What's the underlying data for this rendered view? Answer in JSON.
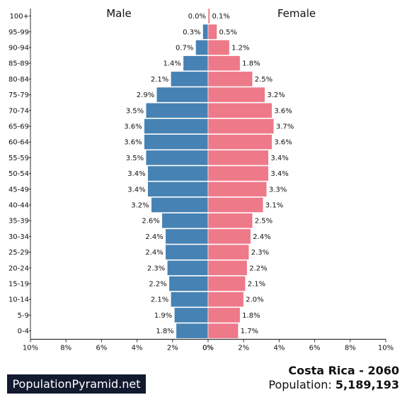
{
  "chart_data": {
    "type": "bar",
    "orientation": "horizontal",
    "categories": [
      "100+",
      "95-99",
      "90-94",
      "85-89",
      "80-84",
      "75-79",
      "70-74",
      "65-69",
      "60-64",
      "55-59",
      "50-54",
      "45-49",
      "40-44",
      "35-39",
      "30-34",
      "25-29",
      "20-24",
      "15-19",
      "10-14",
      "5-9",
      "0-4"
    ],
    "series": [
      {
        "name": "Male",
        "values": [
          0.0,
          0.3,
          0.7,
          1.4,
          2.1,
          2.9,
          3.5,
          3.6,
          3.6,
          3.5,
          3.4,
          3.4,
          3.2,
          2.6,
          2.4,
          2.4,
          2.3,
          2.2,
          2.1,
          1.9,
          1.8
        ],
        "labels": [
          "0.0%",
          "0.3%",
          "0.7%",
          "1.4%",
          "2.1%",
          "2.9%",
          "3.5%",
          "3.6%",
          "3.6%",
          "3.5%",
          "3.4%",
          "3.4%",
          "3.2%",
          "2.6%",
          "2.4%",
          "2.4%",
          "2.3%",
          "2.2%",
          "2.1%",
          "1.9%",
          "1.8%"
        ],
        "color": "#4682b4"
      },
      {
        "name": "Female",
        "values": [
          0.1,
          0.5,
          1.2,
          1.8,
          2.5,
          3.2,
          3.6,
          3.7,
          3.6,
          3.4,
          3.4,
          3.3,
          3.1,
          2.5,
          2.4,
          2.3,
          2.2,
          2.1,
          2.0,
          1.8,
          1.7
        ],
        "labels": [
          "0.1%",
          "0.5%",
          "1.2%",
          "1.8%",
          "2.5%",
          "3.2%",
          "3.6%",
          "3.7%",
          "3.6%",
          "3.4%",
          "3.4%",
          "3.3%",
          "3.1%",
          "2.5%",
          "2.4%",
          "2.3%",
          "2.2%",
          "2.1%",
          "2.0%",
          "1.8%",
          "1.7%"
        ],
        "color": "#ee7989"
      }
    ],
    "xlim": [
      -10,
      10
    ],
    "x_ticks": [
      "10%",
      "8%",
      "6%",
      "4%",
      "2%",
      "0%",
      "0%",
      "2%",
      "4%",
      "6%",
      "8%",
      "10%"
    ],
    "grid": false
  },
  "footer": {
    "brand": "PopulationPyramid.net",
    "country_year": "Costa Rica - 2060",
    "population_label": "Population:",
    "population_value": "5,189,193"
  }
}
